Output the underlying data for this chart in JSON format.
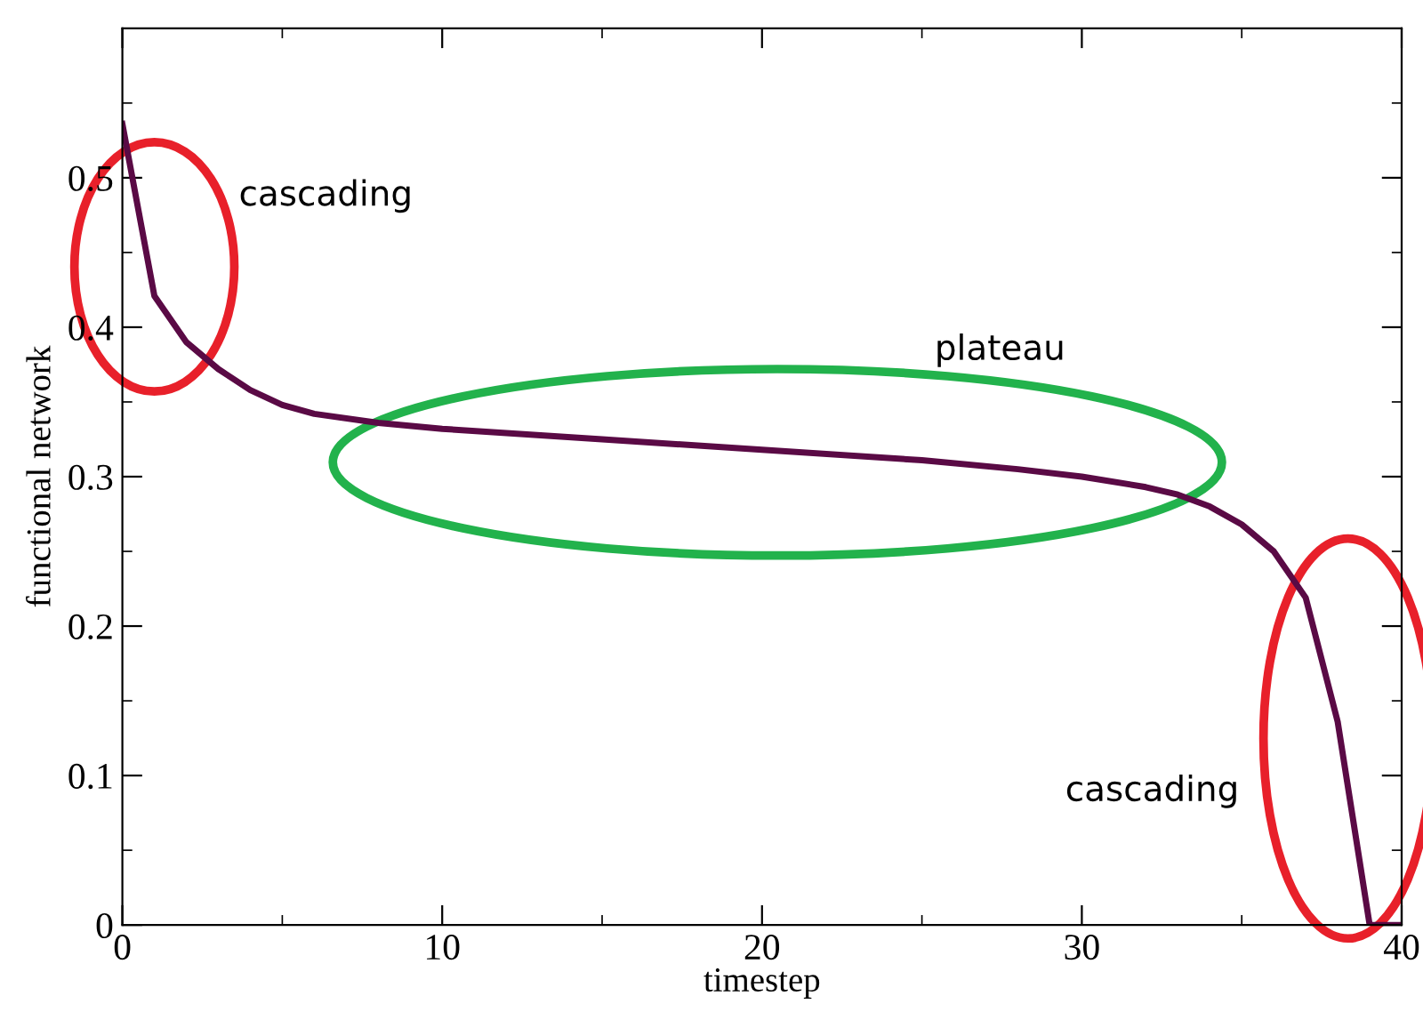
{
  "chart_data": {
    "type": "line",
    "xlabel": "timestep",
    "ylabel": "functional network",
    "x": [
      0,
      1,
      2,
      3,
      4,
      5,
      6,
      8,
      10,
      15,
      20,
      25,
      28,
      30,
      32,
      33,
      34,
      35,
      36,
      37,
      38,
      39,
      40
    ],
    "series": [
      {
        "color": "#5a0a45",
        "values": [
          0.536,
          0.421,
          0.39,
          0.372,
          0.358,
          0.348,
          0.342,
          0.336,
          0.332,
          0.325,
          0.318,
          0.311,
          0.305,
          0.3,
          0.293,
          0.288,
          0.28,
          0.268,
          0.25,
          0.219,
          0.136,
          0,
          0
        ]
      }
    ],
    "xlim": [
      0,
      40
    ],
    "xticks": [
      0,
      10,
      20,
      30,
      40
    ],
    "ylim": [
      0,
      0.6
    ],
    "yticks": [
      0,
      0.1,
      0.2,
      0.3,
      0.4,
      0.5
    ],
    "annotations": [
      "cascading",
      "plateau",
      "cascading"
    ],
    "grid": false
  }
}
